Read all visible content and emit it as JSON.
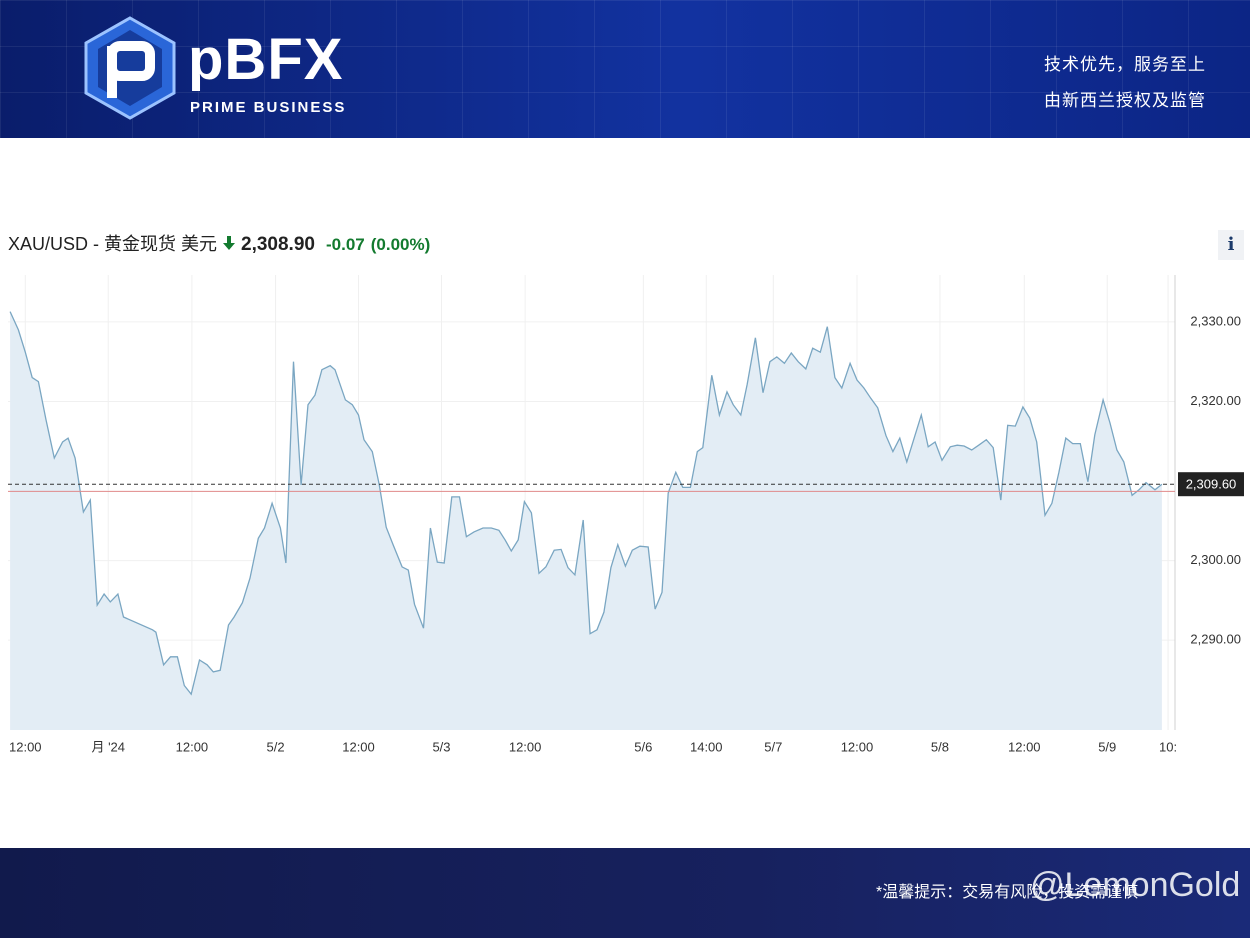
{
  "header": {
    "logo": "pBFX",
    "tagline": "PRIME BUSINESS",
    "slogan_1": "技术优先，服务至上",
    "slogan_2": "由新西兰授权及监管"
  },
  "quote": {
    "symbol": "XAU/USD - 黄金现货 美元",
    "price": "2,308.90",
    "change": "-0.07",
    "change_pct": "(0.00%)",
    "info": "i"
  },
  "chart_data": {
    "type": "area",
    "color": "#7aa6c2",
    "fill": "#e3edf5",
    "grid": true,
    "x": [
      -2.2,
      -1.0,
      0,
      1.0,
      1.9,
      3.0,
      4.2,
      5.4,
      6.2,
      7.2,
      8.4,
      9.4,
      10.4,
      11.4,
      12.3,
      13.4,
      14.2,
      18.4,
      18.9,
      20.0,
      21.0,
      22.0,
      23.0,
      24.0,
      25.2,
      26.3,
      27.2,
      28.2,
      29.4,
      30.2,
      31.4,
      32.5,
      33.7,
      34.6,
      35.7,
      36.9,
      37.7,
      38.8,
      39.9,
      40.9,
      41.9,
      42.9,
      44.1,
      44.8,
      46.3,
      47.3,
      48.2,
      49.0,
      50.2,
      51.2,
      52.2,
      53.2,
      54.5,
      55.4,
      56.3,
      57.6,
      58.6,
      59.6,
      60.6,
      61.7,
      62.8,
      63.8,
      64.9,
      66.2,
      67.4,
      68.5,
      69.4,
      70.3,
      71.3,
      72.2,
      73.2,
      74.3,
      75.3,
      76.5,
      77.5,
      78.5,
      79.5,
      80.7,
      81.7,
      82.7,
      83.7,
      84.7,
      85.7,
      86.8,
      87.8,
      88.9,
      90.1,
      91.1,
      92.1,
      93.0,
      94.1,
      95.1,
      96.2,
      97.2,
      98.0,
      99.3,
      100.4,
      101.5,
      102.4,
      103.5,
      104.4,
      105.6,
      106.7,
      107.7,
      108.7,
      109.8,
      110.8,
      111.8,
      112.9,
      113.9,
      115.0,
      116.0,
      117.1,
      118.1,
      119.3,
      120.3,
      121.3,
      122.3,
      123.3,
      124.5,
      125.5,
      126.5,
      127.5,
      128.6,
      129.6,
      130.6,
      131.6,
      132.6,
      133.8,
      134.8,
      135.8,
      136.9,
      137.9,
      139.0,
      140.0,
      141.1,
      142.1,
      143.2,
      144.3,
      145.3,
      146.3,
      147.5,
      148.5,
      149.5,
      150.5,
      151.5,
      152.6,
      153.7,
      154.7,
      155.9,
      156.9,
      157.9,
      158.9,
      160.1,
      161.1,
      162.1,
      163.4,
      164.4
    ],
    "values": [
      2331.3,
      2329.0,
      2326.2,
      2323.0,
      2322.5,
      2317.7,
      2312.9,
      2314.9,
      2315.4,
      2312.9,
      2306.1,
      2307.6,
      2294.4,
      2295.8,
      2294.8,
      2295.8,
      2292.9,
      2291.3,
      2291.0,
      2286.9,
      2287.9,
      2287.9,
      2284.3,
      2283.2,
      2287.5,
      2286.9,
      2286.0,
      2286.2,
      2291.9,
      2292.9,
      2294.7,
      2297.8,
      2302.8,
      2304.1,
      2307.2,
      2304.1,
      2299.7,
      2325.0,
      2309.5,
      2319.6,
      2320.8,
      2324.0,
      2324.5,
      2324.0,
      2320.2,
      2319.6,
      2318.3,
      2315.2,
      2313.7,
      2309.5,
      2304.2,
      2302.0,
      2299.2,
      2298.8,
      2294.5,
      2291.5,
      2304.1,
      2299.8,
      2299.7,
      2308.0,
      2308.0,
      2303.0,
      2303.6,
      2304.1,
      2304.1,
      2303.8,
      2302.6,
      2301.2,
      2302.6,
      2307.4,
      2306.0,
      2298.4,
      2299.2,
      2301.3,
      2301.4,
      2299.1,
      2298.2,
      2305.1,
      2290.8,
      2291.3,
      2293.5,
      2299.1,
      2302.0,
      2299.3,
      2301.3,
      2301.8,
      2301.7,
      2293.9,
      2296.0,
      2308.5,
      2311.1,
      2309.2,
      2309.2,
      2313.7,
      2314.2,
      2323.3,
      2318.3,
      2321.2,
      2319.6,
      2318.3,
      2322.1,
      2328.0,
      2321.1,
      2325.0,
      2325.6,
      2324.8,
      2326.1,
      2325.0,
      2324.1,
      2326.7,
      2326.2,
      2329.4,
      2323.0,
      2321.7,
      2324.8,
      2322.7,
      2321.7,
      2320.4,
      2319.2,
      2315.7,
      2313.7,
      2315.4,
      2312.4,
      2315.5,
      2318.3,
      2314.3,
      2314.9,
      2312.6,
      2314.3,
      2314.5,
      2314.4,
      2313.9,
      2314.5,
      2315.2,
      2314.2,
      2307.6,
      2317.0,
      2316.9,
      2319.3,
      2317.9,
      2314.9,
      2305.7,
      2307.2,
      2311.1,
      2315.4,
      2314.7,
      2314.7,
      2309.9,
      2315.8,
      2320.2,
      2317.3,
      2313.9,
      2312.4,
      2308.2,
      2308.9,
      2309.8,
      2308.9,
      2309.6
    ],
    "xlim": [
      -2.5,
      166.3
    ],
    "xticks": [
      {
        "value": 0,
        "label": "12:00"
      },
      {
        "value": 12.0,
        "label": "月 '24"
      },
      {
        "value": 24.1,
        "label": "12:00"
      },
      {
        "value": 36.2,
        "label": "5/2"
      },
      {
        "value": 48.2,
        "label": "12:00"
      },
      {
        "value": 60.2,
        "label": "5/3"
      },
      {
        "value": 72.3,
        "label": "12:00"
      },
      {
        "value": 89.4,
        "label": "5/6"
      },
      {
        "value": 98.5,
        "label": "14:00"
      },
      {
        "value": 108.2,
        "label": "5/7"
      },
      {
        "value": 120.3,
        "label": "12:00"
      },
      {
        "value": 132.3,
        "label": "5/8"
      },
      {
        "value": 144.5,
        "label": "12:00"
      },
      {
        "value": 156.5,
        "label": "5/9"
      },
      {
        "value": 165.3,
        "label": "10:"
      }
    ],
    "ylim": [
      2278.7,
      2335.9
    ],
    "yticks": [
      {
        "value": 2290,
        "label": "2,290.00"
      },
      {
        "value": 2300,
        "label": "2,300.00"
      },
      {
        "value": 2320,
        "label": "2,320.00"
      },
      {
        "value": 2330,
        "label": "2,330.00"
      }
    ],
    "current_price": {
      "value": 2309.6,
      "label": "2,309.60"
    },
    "baseline": 2308.7
  },
  "footer": {
    "note": "*温馨提示：交易有风险，投资需谨慎",
    "watermark": "@LemonGold"
  }
}
